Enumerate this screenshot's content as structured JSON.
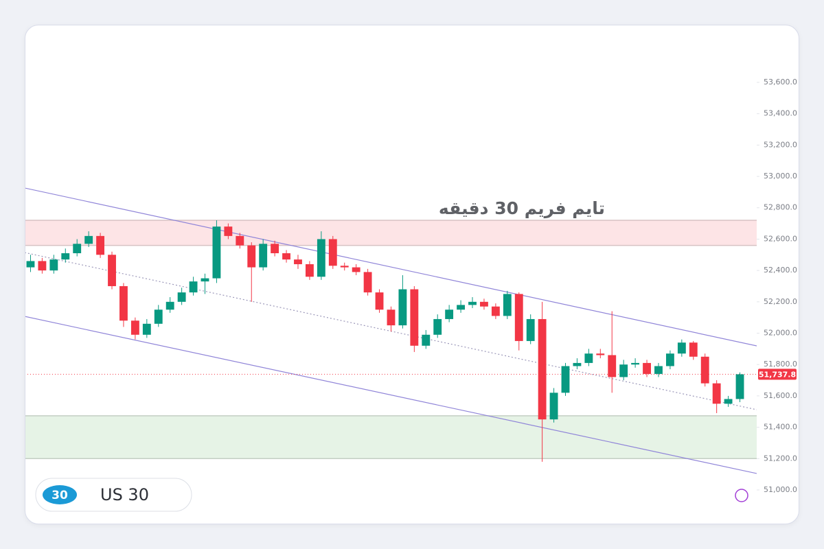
{
  "chart_data": {
    "type": "candlestick",
    "annotation": "تایم فریم 30 دقیقه",
    "symbol_badge": "30",
    "symbol": "US 30",
    "up_color": "#089981",
    "down_color": "#f23645",
    "open": [
      52420,
      52460,
      52400,
      52470,
      52510,
      52570,
      52620,
      52500,
      52300,
      52080,
      51990,
      52060,
      52150,
      52200,
      52260,
      52330,
      52350,
      52680,
      52620,
      52560,
      52420,
      52570,
      52510,
      52470,
      52440,
      52360,
      52600,
      52430,
      52420,
      52390,
      52260,
      52150,
      52050,
      52280,
      51920,
      51990,
      52090,
      52150,
      52180,
      52200,
      52170,
      52110,
      52250,
      51950,
      52090,
      51450,
      51620,
      51790,
      51810,
      51870,
      51860,
      51720,
      51800,
      51810,
      51740,
      51790,
      51870,
      51940,
      51850,
      51680,
      51550,
      51580
    ],
    "high": [
      52500,
      52480,
      52500,
      52540,
      52600,
      52650,
      52640,
      52520,
      52320,
      52100,
      52090,
      52180,
      52230,
      52290,
      52360,
      52380,
      52720,
      52700,
      52640,
      52580,
      52600,
      52590,
      52530,
      52500,
      52460,
      52650,
      52620,
      52450,
      52440,
      52410,
      52280,
      52170,
      52370,
      52300,
      52020,
      52120,
      52180,
      52210,
      52230,
      52220,
      52190,
      52270,
      52260,
      52120,
      52200,
      51650,
      51810,
      51840,
      51900,
      51900,
      52140,
      51830,
      51840,
      51830,
      51810,
      51890,
      51960,
      51950,
      51870,
      51700,
      51600,
      51750
    ],
    "low": [
      52390,
      52380,
      52380,
      52450,
      52490,
      52550,
      52480,
      52280,
      52040,
      51960,
      51970,
      52040,
      52130,
      52180,
      52240,
      52250,
      52320,
      52600,
      52540,
      52200,
      52400,
      52490,
      52450,
      52410,
      52340,
      52340,
      52410,
      52400,
      52370,
      52240,
      52130,
      52010,
      52030,
      51880,
      51900,
      51970,
      52070,
      52130,
      52160,
      52150,
      52090,
      52090,
      51890,
      51930,
      51180,
      51430,
      51600,
      51770,
      51790,
      51840,
      51620,
      51700,
      51780,
      51720,
      51720,
      51770,
      51850,
      51830,
      51660,
      51490,
      51530,
      51560
    ],
    "close": [
      52460,
      52400,
      52470,
      52510,
      52570,
      52620,
      52500,
      52300,
      52080,
      51990,
      52060,
      52150,
      52200,
      52260,
      52330,
      52350,
      52680,
      52620,
      52560,
      52420,
      52570,
      52510,
      52470,
      52440,
      52360,
      52600,
      52430,
      52420,
      52390,
      52260,
      52150,
      52050,
      52280,
      51920,
      51990,
      52090,
      52150,
      52180,
      52200,
      52170,
      52110,
      52250,
      51950,
      52090,
      51450,
      51620,
      51790,
      51810,
      51870,
      51860,
      51720,
      51800,
      51810,
      51740,
      51790,
      51870,
      51940,
      51850,
      51680,
      51550,
      51580,
      51737.8
    ],
    "ylim": [
      50900,
      53800
    ],
    "yticks": [
      {
        "value": 51000,
        "label": "51,000.0"
      },
      {
        "value": 51200,
        "label": "51,200.0"
      },
      {
        "value": 51400,
        "label": "51,400.0"
      },
      {
        "value": 51600,
        "label": "51,600.0"
      },
      {
        "value": 51800,
        "label": "51,800.0"
      },
      {
        "value": 52000,
        "label": "52,000.0"
      },
      {
        "value": 52200,
        "label": "52,200.0"
      },
      {
        "value": 52400,
        "label": "52,400.0"
      },
      {
        "value": 52600,
        "label": "52,600.0"
      },
      {
        "value": 52800,
        "label": "52,800.0"
      },
      {
        "value": 53000,
        "label": "53,000.0"
      },
      {
        "value": 53200,
        "label": "53,200.0"
      },
      {
        "value": 53400,
        "label": "53,400.0"
      },
      {
        "value": 53600,
        "label": "53,600.0"
      }
    ],
    "zones": [
      {
        "range": [
          52560,
          52720
        ],
        "color": "#fde4e6"
      },
      {
        "range": [
          51200,
          51473
        ],
        "color": "#e6f3e6"
      }
    ],
    "trend_lines": [
      {
        "values": [
          52926,
          51919
        ],
        "color": "#8f84d8",
        "style": "solid"
      },
      {
        "values": [
          52514,
          51512
        ],
        "color": "#9a96b8",
        "style": "dotted"
      },
      {
        "values": [
          52107,
          51105
        ],
        "color": "#8f84d8",
        "style": "solid"
      }
    ],
    "last_price": {
      "value": 51737.8,
      "label": "51,737.8",
      "color": "#f23645"
    }
  }
}
